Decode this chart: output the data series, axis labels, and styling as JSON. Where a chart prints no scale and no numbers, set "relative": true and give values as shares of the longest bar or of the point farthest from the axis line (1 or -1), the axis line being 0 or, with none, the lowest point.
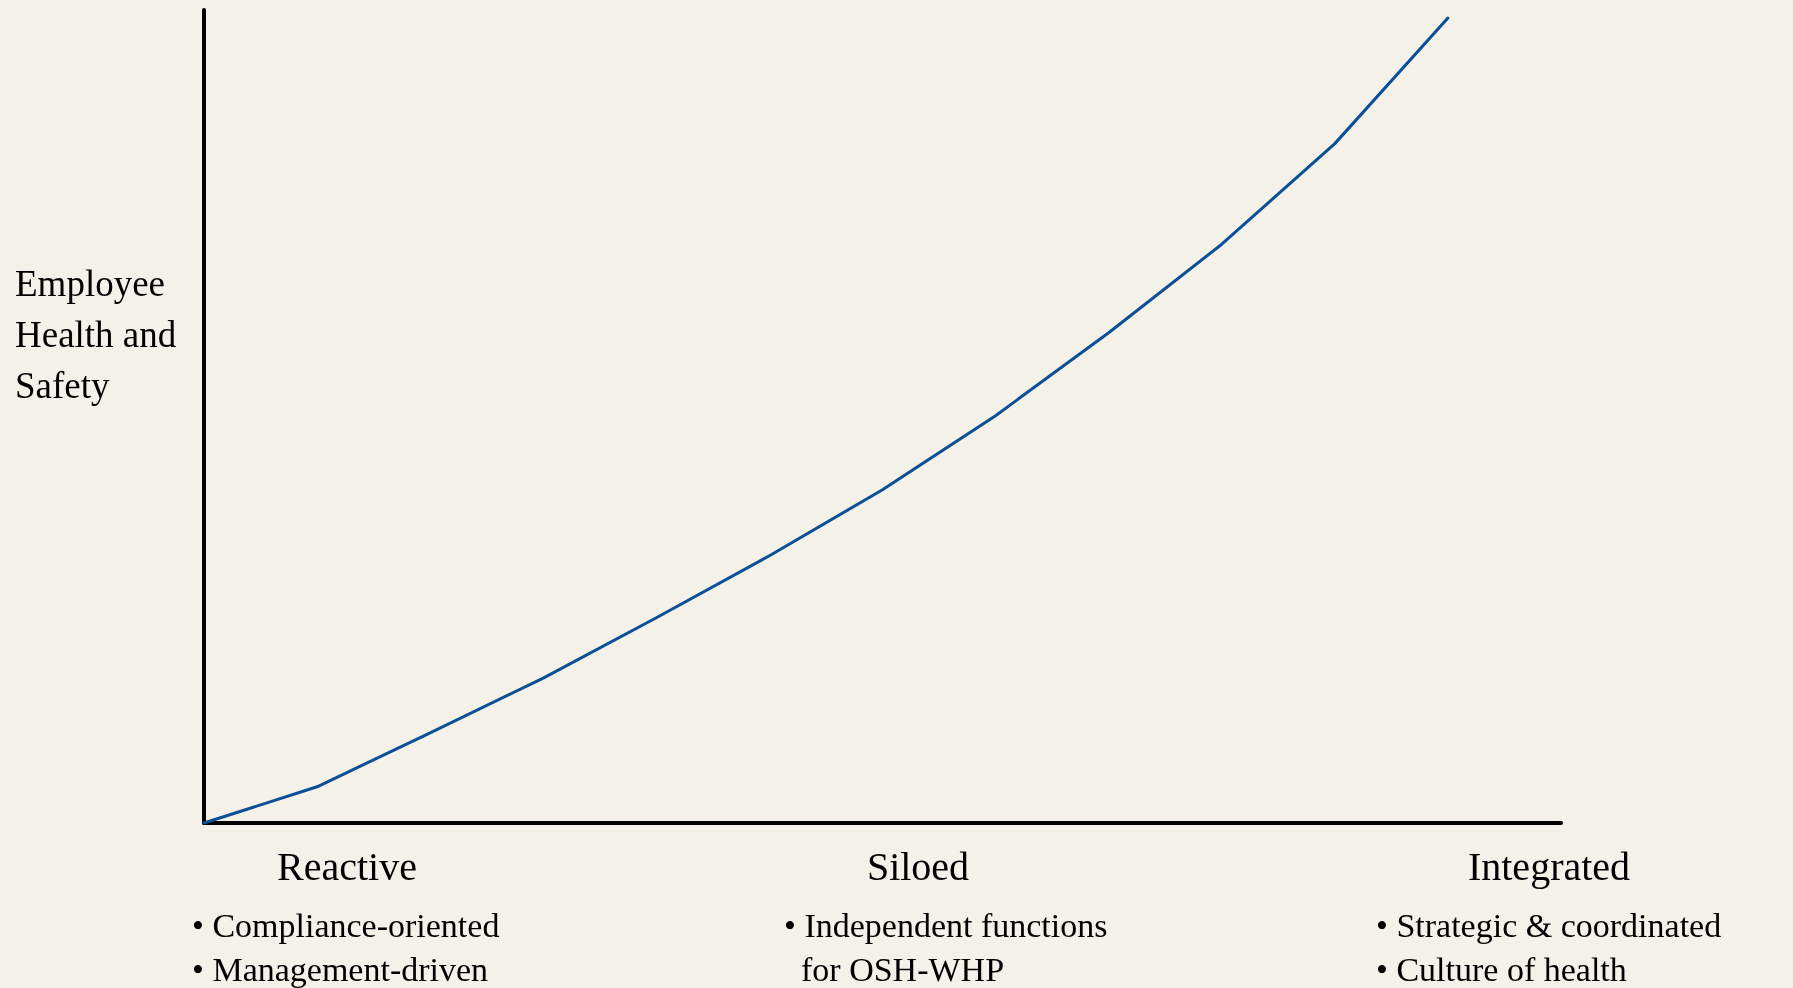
{
  "chart_data": {
    "type": "line",
    "relative": true,
    "ylabel": "Employee Health and Safety",
    "categories": [
      null,
      null,
      null,
      null,
      null,
      null,
      null,
      null,
      null,
      null,
      null,
      null,
      null
    ],
    "series": [
      {
        "color": "#0b4f96",
        "values": [
          0,
          0.045,
          0.112,
          0.18,
          0.255,
          0.332,
          0.414,
          0.506,
          0.609,
          0.719,
          0.844,
          1,
          null
        ]
      }
    ],
    "annotations": [
      "Reactive\n• Compliance-oriented\n• Management-driven",
      "Siloed\n• Independent functions\n  for OSH-WHP",
      "Integrated\n• Strategic & coordinated\n• Culture of health"
    ],
    "grid": false,
    "marker": "none",
    "line_style": "solid"
  }
}
